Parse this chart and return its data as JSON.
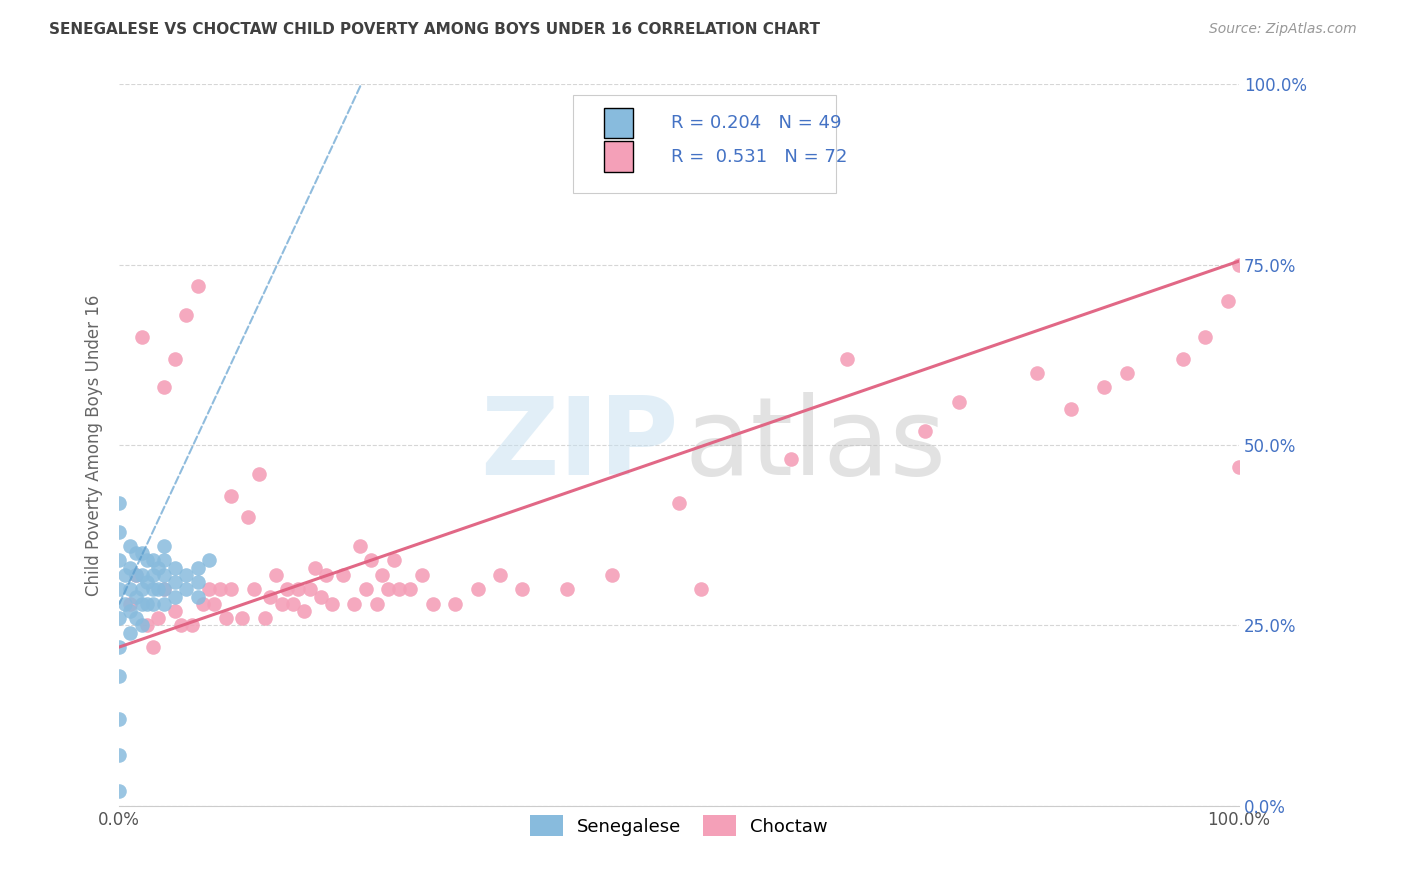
{
  "title": "SENEGALESE VS CHOCTAW CHILD POVERTY AMONG BOYS UNDER 16 CORRELATION CHART",
  "source": "Source: ZipAtlas.com",
  "ylabel": "Child Poverty Among Boys Under 16",
  "xlim": [
    0,
    1
  ],
  "ylim": [
    0,
    1
  ],
  "ytick_labels": [
    "0.0%",
    "25.0%",
    "50.0%",
    "75.0%",
    "100.0%"
  ],
  "ytick_values": [
    0,
    0.25,
    0.5,
    0.75,
    1.0
  ],
  "senegalese_color": "#88bbdd",
  "choctaw_color": "#f4a0b8",
  "trend_senegalese_color": "#5599cc",
  "trend_choctaw_color": "#e06080",
  "background_color": "#ffffff",
  "grid_color": "#cccccc",
  "title_color": "#404040",
  "axis_label_color": "#666666",
  "right_tick_color": "#4472c4",
  "senegalese_x": [
    0.0,
    0.0,
    0.0,
    0.0,
    0.0,
    0.0,
    0.0,
    0.0,
    0.0,
    0.0,
    0.005,
    0.005,
    0.01,
    0.01,
    0.01,
    0.01,
    0.01,
    0.015,
    0.015,
    0.015,
    0.015,
    0.02,
    0.02,
    0.02,
    0.02,
    0.02,
    0.025,
    0.025,
    0.025,
    0.03,
    0.03,
    0.03,
    0.03,
    0.035,
    0.035,
    0.04,
    0.04,
    0.04,
    0.04,
    0.04,
    0.05,
    0.05,
    0.05,
    0.06,
    0.06,
    0.07,
    0.07,
    0.07,
    0.08
  ],
  "senegalese_y": [
    0.42,
    0.38,
    0.34,
    0.3,
    0.26,
    0.22,
    0.18,
    0.12,
    0.07,
    0.02,
    0.32,
    0.28,
    0.36,
    0.33,
    0.3,
    0.27,
    0.24,
    0.35,
    0.32,
    0.29,
    0.26,
    0.35,
    0.32,
    0.3,
    0.28,
    0.25,
    0.34,
    0.31,
    0.28,
    0.34,
    0.32,
    0.3,
    0.28,
    0.33,
    0.3,
    0.36,
    0.34,
    0.32,
    0.3,
    0.28,
    0.33,
    0.31,
    0.29,
    0.32,
    0.3,
    0.33,
    0.31,
    0.29,
    0.34
  ],
  "choctaw_x": [
    0.01,
    0.015,
    0.02,
    0.025,
    0.03,
    0.035,
    0.04,
    0.04,
    0.05,
    0.05,
    0.055,
    0.06,
    0.065,
    0.07,
    0.075,
    0.08,
    0.085,
    0.09,
    0.095,
    0.1,
    0.1,
    0.11,
    0.115,
    0.12,
    0.125,
    0.13,
    0.135,
    0.14,
    0.145,
    0.15,
    0.155,
    0.16,
    0.165,
    0.17,
    0.175,
    0.18,
    0.185,
    0.19,
    0.2,
    0.21,
    0.215,
    0.22,
    0.225,
    0.23,
    0.235,
    0.24,
    0.245,
    0.25,
    0.26,
    0.27,
    0.28,
    0.3,
    0.32,
    0.34,
    0.36,
    0.4,
    0.44,
    0.5,
    0.52,
    0.6,
    0.65,
    0.72,
    0.75,
    0.82,
    0.85,
    0.88,
    0.9,
    0.95,
    0.97,
    0.99,
    1.0,
    1.0
  ],
  "choctaw_y": [
    0.28,
    0.32,
    0.65,
    0.25,
    0.22,
    0.26,
    0.3,
    0.58,
    0.27,
    0.62,
    0.25,
    0.68,
    0.25,
    0.72,
    0.28,
    0.3,
    0.28,
    0.3,
    0.26,
    0.3,
    0.43,
    0.26,
    0.4,
    0.3,
    0.46,
    0.26,
    0.29,
    0.32,
    0.28,
    0.3,
    0.28,
    0.3,
    0.27,
    0.3,
    0.33,
    0.29,
    0.32,
    0.28,
    0.32,
    0.28,
    0.36,
    0.3,
    0.34,
    0.28,
    0.32,
    0.3,
    0.34,
    0.3,
    0.3,
    0.32,
    0.28,
    0.28,
    0.3,
    0.32,
    0.3,
    0.3,
    0.32,
    0.42,
    0.3,
    0.48,
    0.62,
    0.52,
    0.56,
    0.6,
    0.55,
    0.58,
    0.6,
    0.62,
    0.65,
    0.7,
    0.75,
    0.47
  ],
  "choctaw_trend_x0": 0.0,
  "choctaw_trend_y0": 0.22,
  "choctaw_trend_x1": 1.0,
  "choctaw_trend_y1": 0.755,
  "senegalese_trend_x0": 0.0,
  "senegalese_trend_y0": 0.28,
  "senegalese_trend_x1": 0.12,
  "senegalese_trend_y1": 0.68
}
